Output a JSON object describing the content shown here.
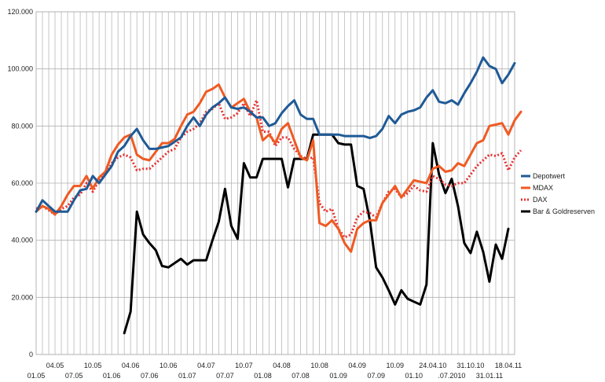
{
  "chart_data": {
    "type": "line",
    "ylim": [
      0,
      120000
    ],
    "yticks": [
      "0",
      "20.000",
      "40.000",
      "60.000",
      "80.000",
      "100.000",
      "120.000"
    ],
    "ytick_values": [
      0,
      20000,
      40000,
      60000,
      80000,
      100000,
      120000
    ],
    "xlabels": [
      {
        "text": "01.05",
        "i": 0,
        "row": 1
      },
      {
        "text": "04.05",
        "i": 3,
        "row": 0
      },
      {
        "text": "07.05",
        "i": 6,
        "row": 1
      },
      {
        "text": "10.05",
        "i": 9,
        "row": 0
      },
      {
        "text": "01.06",
        "i": 12,
        "row": 1
      },
      {
        "text": "04.06",
        "i": 15,
        "row": 0
      },
      {
        "text": "07.06",
        "i": 18,
        "row": 1
      },
      {
        "text": "10.06",
        "i": 21,
        "row": 0
      },
      {
        "text": "01.07",
        "i": 24,
        "row": 1
      },
      {
        "text": "04.07",
        "i": 27,
        "row": 0
      },
      {
        "text": "07.07",
        "i": 30,
        "row": 1
      },
      {
        "text": "10.07",
        "i": 33,
        "row": 0
      },
      {
        "text": "01.08",
        "i": 36,
        "row": 1
      },
      {
        "text": "04.08",
        "i": 39,
        "row": 0
      },
      {
        "text": "07.08",
        "i": 42,
        "row": 1
      },
      {
        "text": "10.08",
        "i": 45,
        "row": 0
      },
      {
        "text": "01.09",
        "i": 48,
        "row": 1
      },
      {
        "text": "04.09",
        "i": 51,
        "row": 0
      },
      {
        "text": "07.09",
        "i": 54,
        "row": 1
      },
      {
        "text": "10.09",
        "i": 57,
        "row": 0
      },
      {
        "text": "01.10",
        "i": 60,
        "row": 1
      },
      {
        "text": "24.04.10",
        "i": 63,
        "row": 0
      },
      {
        "text": ".07.2010",
        "i": 66,
        "row": 1
      },
      {
        "text": "31.10.10",
        "i": 69,
        "row": 0
      },
      {
        "text": "31.01.11",
        "i": 72,
        "row": 1
      },
      {
        "text": "18.04.11",
        "i": 75,
        "row": 0
      }
    ],
    "legend_position": "right",
    "grid": "vertical",
    "series": [
      {
        "name": "Depotwert",
        "color": "#1f5a96",
        "style": "solid",
        "values": [
          50000,
          54000,
          52000,
          50000,
          50000,
          50000,
          54000,
          57500,
          58000,
          62500,
          60000,
          63000,
          66000,
          71000,
          73000,
          76500,
          79000,
          75000,
          72000,
          72000,
          72500,
          73000,
          74500,
          76000,
          80000,
          83000,
          80000,
          84000,
          86500,
          88000,
          90000,
          86500,
          86000,
          86500,
          85000,
          83000,
          83000,
          80000,
          81000,
          84500,
          87000,
          89000,
          84000,
          82500,
          82500,
          77000,
          77000,
          77000,
          77000,
          76500,
          76500,
          76500,
          76500,
          75800,
          76500,
          79000,
          83500,
          81000,
          84000,
          85000,
          85500,
          86500,
          90000,
          92500,
          88500,
          88000,
          89000,
          87500,
          91500,
          95000,
          99000,
          104000,
          101000,
          100000,
          95000,
          98000,
          102000
        ]
      },
      {
        "name": "MDAX",
        "color": "#ef5a22",
        "style": "solid",
        "values": [
          50000,
          52000,
          51000,
          49000,
          52000,
          56000,
          59000,
          59000,
          62500,
          58000,
          62000,
          64000,
          70000,
          73500,
          76000,
          77000,
          70000,
          68500,
          68000,
          71000,
          74000,
          74000,
          75500,
          80000,
          84000,
          85000,
          88000,
          92000,
          93000,
          94500,
          90000,
          86500,
          88000,
          89500,
          85000,
          83000,
          75000,
          77000,
          74000,
          79000,
          81000,
          75000,
          69000,
          68000,
          75000,
          46000,
          45000,
          47000,
          44000,
          39000,
          36000,
          44000,
          46000,
          47000,
          47000,
          53000,
          56000,
          59000,
          55000,
          58000,
          61000,
          60500,
          60000,
          65000,
          66000,
          64000,
          64500,
          67000,
          66000,
          70000,
          74000,
          75000,
          80000,
          80500,
          81000,
          77000,
          82000,
          85000
        ]
      },
      {
        "name": "DAX",
        "color": "#e83030",
        "style": "dotted",
        "values": [
          51000,
          52000,
          50500,
          49000,
          51000,
          52000,
          55000,
          56000,
          60000,
          57000,
          61000,
          63000,
          67000,
          69000,
          70000,
          69000,
          64500,
          65000,
          65000,
          67000,
          69000,
          71000,
          72000,
          76000,
          78000,
          79000,
          81000,
          85000,
          86000,
          88000,
          82500,
          83000,
          84500,
          88000,
          83500,
          89000,
          78000,
          78000,
          73000,
          76000,
          76000,
          72000,
          69500,
          68500,
          69000,
          53000,
          50000,
          51000,
          44000,
          41000,
          42000,
          48000,
          50000,
          49500,
          48000,
          53000,
          57000,
          58000,
          55000,
          56500,
          59000,
          57500,
          57000,
          62500,
          61500,
          59500,
          59000,
          60000,
          60000,
          63000,
          66000,
          68000,
          70000,
          69500,
          70500,
          64500,
          69000,
          71500
        ]
      },
      {
        "name": "Bar & Goldreserven",
        "color": "#000000",
        "style": "solid",
        "values": [
          null,
          null,
          null,
          null,
          null,
          null,
          null,
          null,
          null,
          null,
          null,
          null,
          null,
          null,
          7500,
          15000,
          50000,
          42000,
          39000,
          36500,
          31000,
          30500,
          32000,
          33500,
          31500,
          33000,
          33000,
          33000,
          40000,
          46500,
          58000,
          45000,
          40500,
          67000,
          62000,
          62000,
          68500,
          68500,
          68500,
          68500,
          58500,
          68500,
          68500,
          68500,
          77000,
          77000,
          77000,
          77000,
          74000,
          73500,
          73500,
          59000,
          58000,
          47000,
          30500,
          27000,
          22500,
          17500,
          22500,
          19500,
          18500,
          17500,
          24500,
          74000,
          63000,
          56500,
          61500,
          52000,
          39000,
          35500,
          43000,
          36000,
          25500,
          38500,
          33500,
          44000
        ]
      }
    ]
  }
}
